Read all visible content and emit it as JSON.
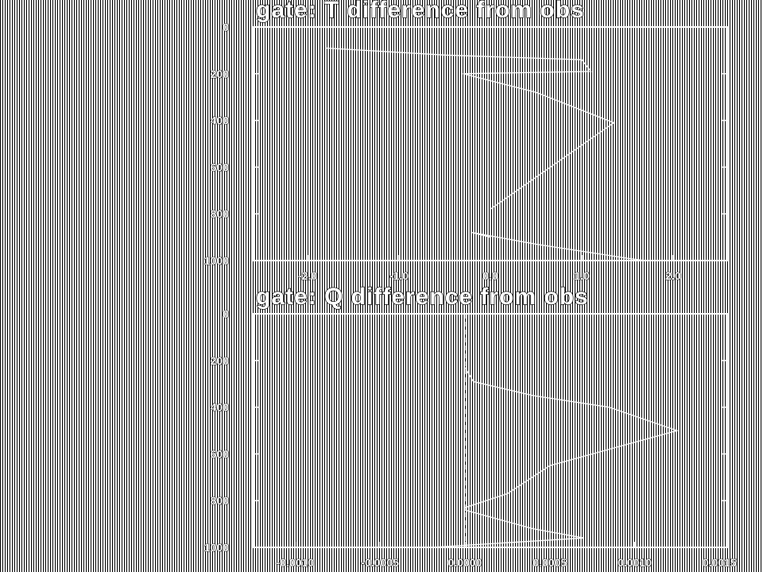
{
  "colors": {
    "background": "#000000",
    "foreground": "#ffffff"
  },
  "chart_data": [
    {
      "type": "line",
      "title": "gate:   T difference from obs",
      "xlabel": "",
      "ylabel": "",
      "xlim": [
        -2.6,
        2.6
      ],
      "ylim": [
        1000,
        0
      ],
      "xticks": [
        -2.0,
        -1.0,
        0.0,
        1.0,
        2.0
      ],
      "xtick_labels": [
        "-2.0",
        "-1.0",
        "0.0",
        "1.0",
        "2.0"
      ],
      "yticks": [
        0,
        200,
        400,
        600,
        800,
        1000
      ],
      "ytick_labels": [
        "0",
        "200",
        "400",
        "600",
        "800",
        "1000"
      ],
      "zero_line": 0.0,
      "series": [
        {
          "x": [
            -1.8,
            -0.5,
            1.0,
            1.1,
            -0.3,
            0.5,
            1.35,
            0.0,
            0.0,
            -0.2,
            0.5,
            1.5,
            1.7
          ],
          "y": [
            90,
            120,
            140,
            190,
            200,
            280,
            410,
            780,
            900,
            880,
            930,
            990,
            1000
          ]
        }
      ]
    },
    {
      "type": "line",
      "title": "gate:   Q difference from obs",
      "xlabel": "",
      "ylabel": "",
      "xlim": [
        -0.00125,
        0.00155
      ],
      "ylim": [
        1000,
        0
      ],
      "xticks": [
        -0.001,
        -0.0005,
        0.0,
        0.0005,
        0.001,
        0.0015
      ],
      "xtick_labels": [
        "-0.0010",
        "-0.0005",
        "0.0000",
        "0.0005",
        "0.0010",
        "0.0015"
      ],
      "yticks": [
        0,
        200,
        400,
        600,
        800,
        1000
      ],
      "yticks_labels_note": "",
      "ytick_labels": [
        "0",
        "200",
        "400",
        "600",
        "800",
        "1000"
      ],
      "zero_line": 0.0,
      "series": [
        {
          "x": [
            0.0,
            5e-05,
            0.0004,
            0.00085,
            0.00125,
            0.0005,
            0.00025,
            0.0,
            0.0,
            0.0004,
            0.0007,
            -0.0002
          ],
          "y": [
            230,
            290,
            350,
            400,
            500,
            650,
            770,
            830,
            840,
            920,
            960,
            1000
          ]
        }
      ]
    }
  ]
}
